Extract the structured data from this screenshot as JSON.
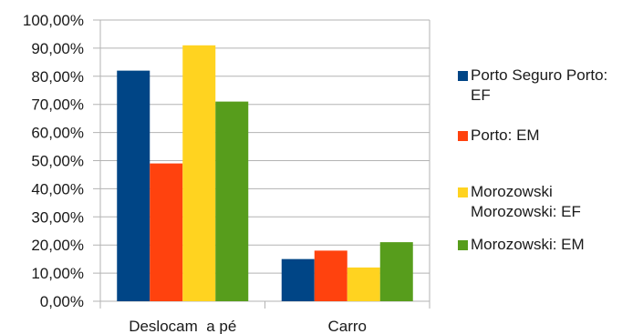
{
  "chart_data": {
    "type": "bar",
    "categories": [
      "Deslocam  a pé",
      "Carro"
    ],
    "series": [
      {
        "name": "Porto Seguro Porto:\nEF",
        "color": "#004586",
        "values": [
          82,
          15
        ]
      },
      {
        "name": "Porto: EM",
        "color": "#ff420e",
        "values": [
          49,
          18
        ]
      },
      {
        "name": "Morozowski\nMorozowski:  EF",
        "color": "#ffd320",
        "values": [
          91,
          12
        ]
      },
      {
        "name": "Morozowski:  EM",
        "color": "#579d1c",
        "values": [
          71,
          21
        ]
      }
    ],
    "y_ticks": [
      "0,00%",
      "10,00%",
      "20,00%",
      "30,00%",
      "40,00%",
      "50,00%",
      "60,00%",
      "70,00%",
      "80,00%",
      "90,00%",
      "100,00%"
    ],
    "ylim": [
      0,
      100
    ],
    "grid": true,
    "legend_position": "right",
    "title": "",
    "xlabel": "",
    "ylabel": ""
  }
}
